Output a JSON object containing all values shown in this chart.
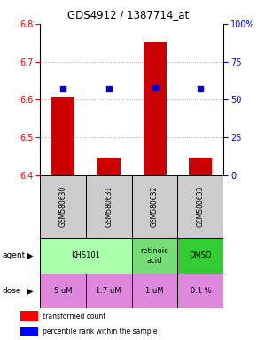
{
  "title": "GDS4912 / 1387714_at",
  "samples": [
    "GSM580630",
    "GSM580631",
    "GSM580632",
    "GSM580633"
  ],
  "bar_values": [
    6.606,
    6.447,
    6.753,
    6.447
  ],
  "bar_base": 6.4,
  "percentile_values": [
    57,
    57,
    58,
    57
  ],
  "percentile_y_scale": [
    0,
    25,
    50,
    75,
    100
  ],
  "ylim": [
    6.4,
    6.8
  ],
  "y_ticks": [
    6.4,
    6.5,
    6.6,
    6.7,
    6.8
  ],
  "bar_color": "#cc0000",
  "dot_color": "#0000cc",
  "agent_data": [
    [
      0,
      2,
      "KHS101",
      "#aaffaa"
    ],
    [
      2,
      3,
      "retinoic\nacid",
      "#77dd77"
    ],
    [
      3,
      4,
      "DMSO",
      "#33cc33"
    ]
  ],
  "dose_labels": [
    "5 uM",
    "1.7 uM",
    "1 uM",
    "0.1 %"
  ],
  "dose_colors": [
    "#dd88dd",
    "#dd88dd",
    "#dd88dd",
    "#eeaaee"
  ],
  "grid_color": "#888888",
  "legend_red": "transformed count",
  "legend_blue": "percentile rank within the sample"
}
